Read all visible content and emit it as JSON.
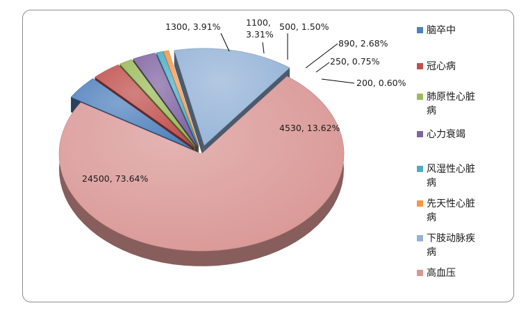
{
  "chart_data": {
    "type": "pie",
    "title": "",
    "slices": [
      {
        "label": "脑卒中",
        "value": 1300,
        "percent": "3.91%",
        "data_label": "1300, 3.91%",
        "color": "#4F81BD",
        "exploded": true
      },
      {
        "label": "冠心病",
        "value": 1100,
        "percent": "3.31%",
        "data_label_lines": [
          "1100,",
          "3.31%"
        ],
        "color": "#C0504D",
        "exploded": true
      },
      {
        "label": "肺原性心脏病",
        "value": 500,
        "percent": "1.50%",
        "data_label": "500, 1.50%",
        "color": "#9BBB59",
        "exploded": true
      },
      {
        "label": "心力衰竭",
        "value": 890,
        "percent": "2.68%",
        "data_label": "890, 2.68%",
        "color": "#8064A2",
        "exploded": true
      },
      {
        "label": "风湿性心脏病",
        "value": 250,
        "percent": "0.75%",
        "data_label": "250, 0.75%",
        "color": "#4BACC6",
        "exploded": true
      },
      {
        "label": "先天性心脏病",
        "value": 200,
        "percent": "0.60%",
        "data_label": "200, 0.60%",
        "color": "#F79646",
        "exploded": true
      },
      {
        "label": "下肢动脉疾病",
        "value": 4530,
        "percent": "13.62%",
        "data_label": "4530, 13.62%",
        "color": "#95B3D7",
        "exploded": true
      },
      {
        "label": "高血压",
        "value": 24500,
        "percent": "73.64%",
        "data_label": "24500, 73.64%",
        "color": "#D99795",
        "exploded": false
      }
    ],
    "legend": {
      "placement": "right",
      "entries": [
        {
          "lines": [
            "脑卒中"
          ],
          "color": "#4F81BD"
        },
        {
          "lines": [
            "冠心病"
          ],
          "color": "#C0504D"
        },
        {
          "lines": [
            "肺原性心脏",
            "病"
          ],
          "color": "#9BBB59"
        },
        {
          "lines": [
            "心力衰竭"
          ],
          "color": "#8064A2"
        },
        {
          "lines": [
            "风湿性心脏",
            "病"
          ],
          "color": "#4BACC6"
        },
        {
          "lines": [
            "先天性心脏",
            "病"
          ],
          "color": "#F79646"
        },
        {
          "lines": [
            "下肢动脉疾",
            "病"
          ],
          "color": "#95B3D7"
        },
        {
          "lines": [
            "高血压"
          ],
          "color": "#D99795"
        }
      ]
    }
  }
}
